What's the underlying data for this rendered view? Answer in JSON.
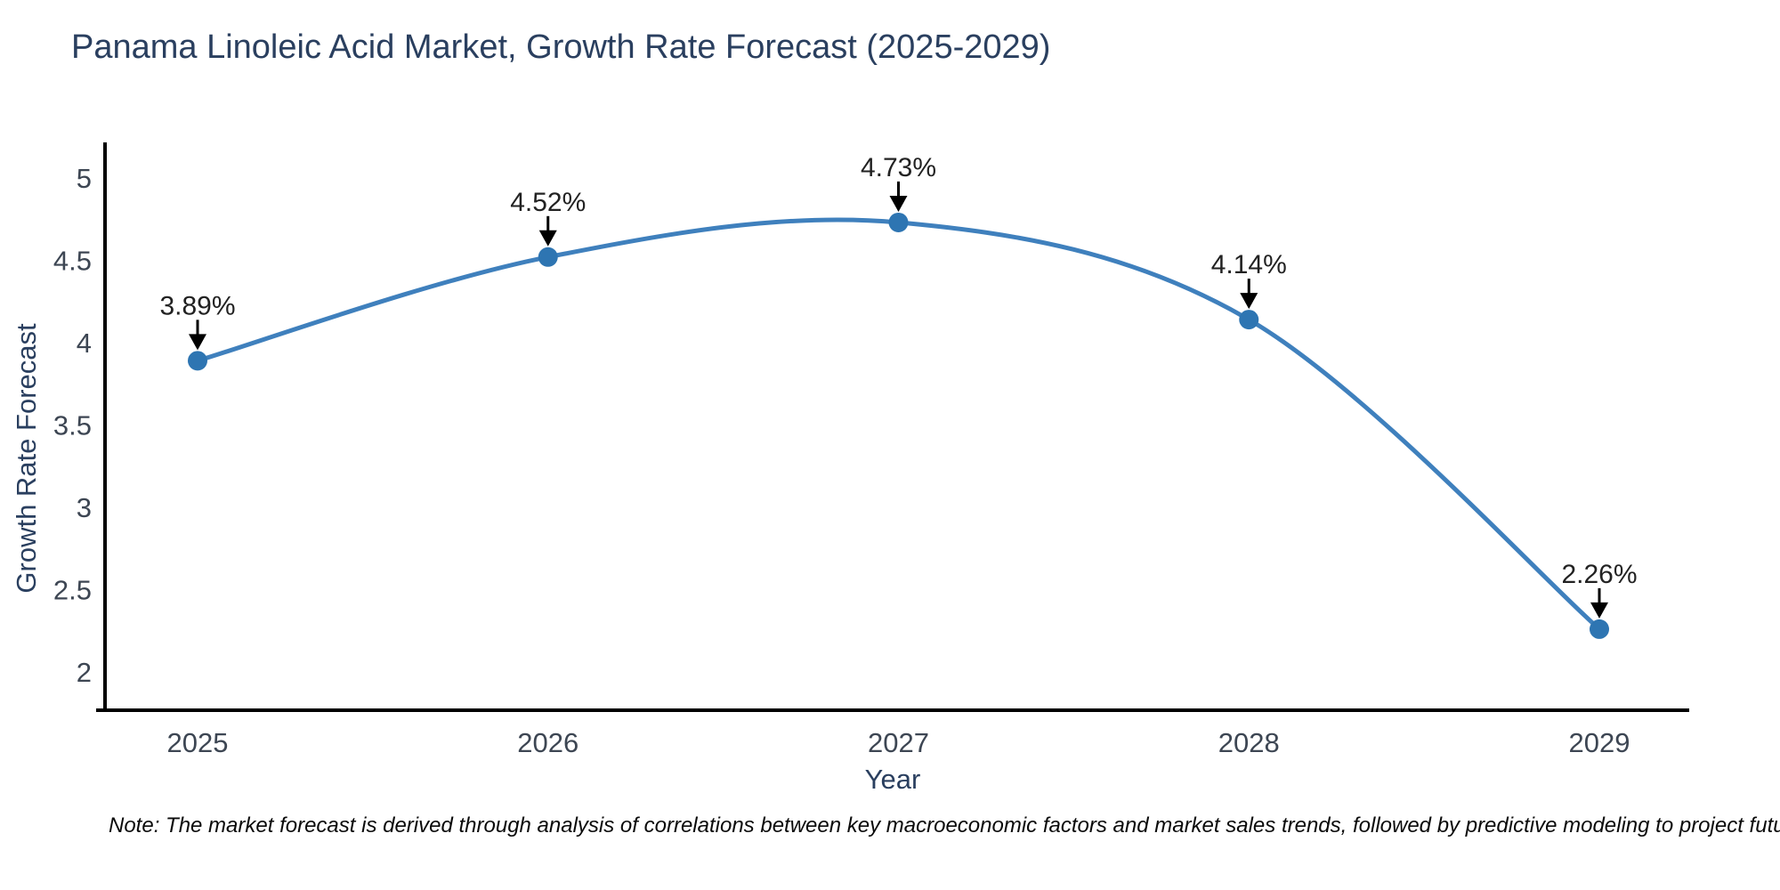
{
  "title": "Panama Linoleic Acid Market, Growth Rate Forecast (2025-2029)",
  "note": "Note: The market forecast is derived through analysis of correlations between key macroeconomic factors and market sales trends, followed by predictive modeling to project future sales",
  "chart_data": {
    "type": "line",
    "title": "Panama Linoleic Acid Market, Growth Rate Forecast (2025-2029)",
    "xlabel": "Year",
    "ylabel": "Growth Rate Forecast",
    "categories": [
      "2025",
      "2026",
      "2027",
      "2028",
      "2029"
    ],
    "values": [
      3.89,
      4.52,
      4.73,
      4.14,
      2.26
    ],
    "point_labels": [
      "3.89%",
      "4.52%",
      "4.73%",
      "4.14%",
      "2.26%"
    ],
    "yticks": [
      2,
      2.5,
      3,
      3.5,
      4,
      4.5,
      5
    ],
    "ylim": [
      1.78,
      5.22
    ],
    "grid": false,
    "legend": "none",
    "line_style": "spline",
    "markers": true,
    "colors": {
      "line": "#3f80bd",
      "marker": "#2e75b2",
      "axis_line": "#000000",
      "title_text": "#2a3f5f",
      "tick_text": "#3d4653",
      "annotation_text": "#222222",
      "annotation_arrow": "#000000",
      "background": "#ffffff"
    }
  }
}
